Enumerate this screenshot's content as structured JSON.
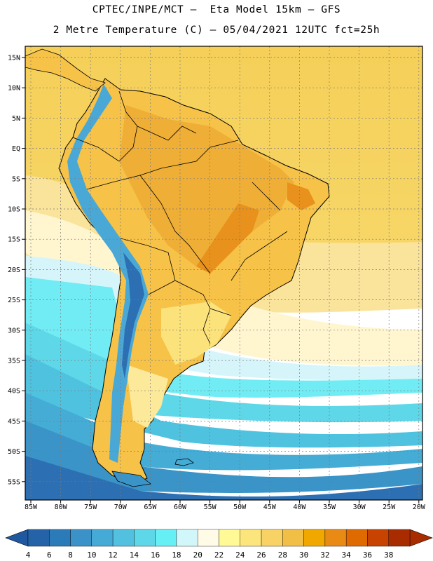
{
  "header": {
    "line1": "CPTEC/INPE/MCT –  Eta Model 15km – GFS",
    "line2": "2 Metre Temperature (C) – 05/04/2021 12UTC fct=25h"
  },
  "axes": {
    "lat_labels": [
      "15N",
      "10N",
      "5N",
      "EQ",
      "5S",
      "10S",
      "15S",
      "20S",
      "25S",
      "30S",
      "35S",
      "40S",
      "45S",
      "50S",
      "55S"
    ],
    "lon_labels": [
      "85W",
      "80W",
      "75W",
      "70W",
      "65W",
      "60W",
      "55W",
      "50W",
      "45W",
      "40W",
      "35W",
      "30W",
      "25W",
      "20W"
    ]
  },
  "colorbar": {
    "labels": [
      "4",
      "6",
      "8",
      "10",
      "12",
      "14",
      "16",
      "18",
      "20",
      "22",
      "24",
      "26",
      "28",
      "30",
      "32",
      "34",
      "36",
      "38"
    ],
    "colors": [
      "#2463a8",
      "#2c7bb9",
      "#3a92c8",
      "#46aad6",
      "#52c0df",
      "#5ed8e8",
      "#66f0f5",
      "#d2f7fb",
      "#fffbe6",
      "#fffa96",
      "#fce57a",
      "#f8d264",
      "#f2bf46",
      "#f0a800",
      "#e98a14",
      "#df6a00",
      "#c84200",
      "#a82c00"
    ],
    "low_arrow_color": "#2058a0",
    "high_arrow_color": "#a82c00"
  },
  "palette": {
    "frame": "#000000",
    "grid": "#7a7a7a",
    "coast": "#000000"
  }
}
